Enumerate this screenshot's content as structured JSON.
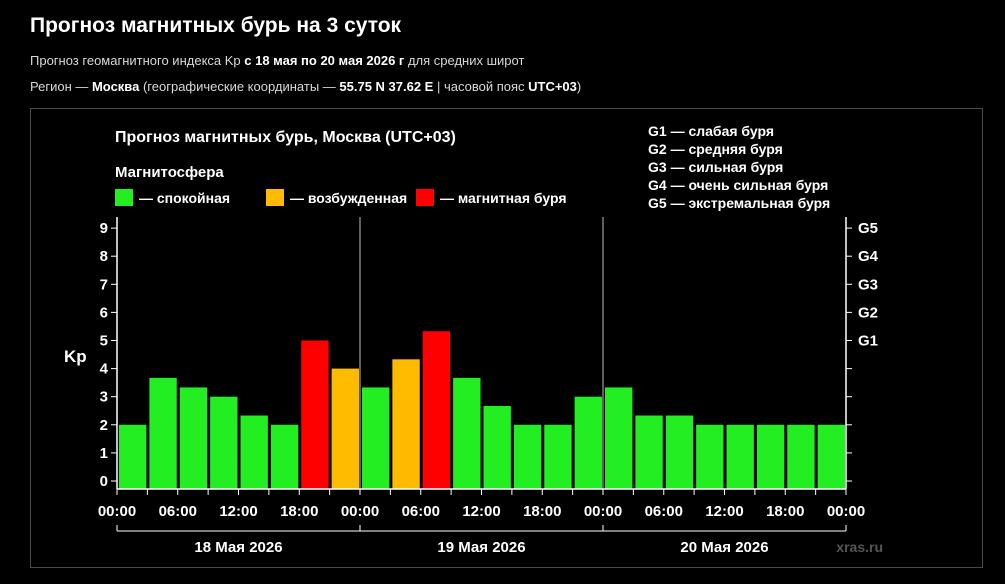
{
  "header": {
    "title": "Прогноз магнитных бурь на 3 суток",
    "line1_prefix": "Прогноз геомагнитного индекса Kp ",
    "line1_bold": "с 18 мая по 20 мая 2026 г",
    "line1_suffix": " для средних широт",
    "line2_prefix": "Регион — ",
    "line2_region": "Москва",
    "line2_mid": " (географические координаты — ",
    "line2_coords": "55.75 N 37.62 E",
    "line2_sep": " | часовой пояс ",
    "line2_tz": "UTC+03",
    "line2_end": ")"
  },
  "chart_data": {
    "type": "bar",
    "title": "Прогноз магнитных бурь, Москва (UTC+03)",
    "legend_title": "Магнитосфера",
    "legend": [
      {
        "label": "— спокойная",
        "color": "#22ee22"
      },
      {
        "label": "— возбужденная",
        "color": "#ffbb00"
      },
      {
        "label": "— магнитная буря",
        "color": "#ff0000"
      }
    ],
    "storm_scale": [
      "G1 — слабая буря",
      "G2 — средняя буря",
      "G3 — сильная буря",
      "G4 — очень сильная буря",
      "G5 — экстремальная буря"
    ],
    "ylabel": "Kp",
    "ylim": [
      0,
      9
    ],
    "yticks": [
      "0",
      "1",
      "2",
      "3",
      "4",
      "5",
      "6",
      "7",
      "8",
      "9"
    ],
    "right_ticks": [
      {
        "label": "G1",
        "value": 5
      },
      {
        "label": "G2",
        "value": 6
      },
      {
        "label": "G3",
        "value": 7
      },
      {
        "label": "G4",
        "value": 8
      },
      {
        "label": "G5",
        "value": 9
      }
    ],
    "xtick_labels": [
      "00:00",
      "06:00",
      "12:00",
      "18:00",
      "00:00",
      "06:00",
      "12:00",
      "18:00",
      "00:00",
      "06:00",
      "12:00",
      "18:00",
      "00:00"
    ],
    "days": [
      "18 Мая 2026",
      "19 Мая 2026",
      "20 Мая 2026"
    ],
    "values": [
      2.0,
      3.67,
      3.33,
      3.0,
      2.33,
      2.0,
      5.0,
      4.0,
      3.33,
      4.33,
      5.33,
      3.67,
      2.67,
      2.0,
      2.0,
      3.0,
      3.33,
      2.33,
      2.33,
      2.0,
      2.0,
      2.0,
      2.0,
      2.0
    ],
    "levels": [
      "calm",
      "calm",
      "calm",
      "calm",
      "calm",
      "calm",
      "storm",
      "active",
      "calm",
      "active",
      "storm",
      "calm",
      "calm",
      "calm",
      "calm",
      "calm",
      "calm",
      "calm",
      "calm",
      "calm",
      "calm",
      "calm",
      "calm",
      "calm"
    ],
    "colors": {
      "calm": "#22ee22",
      "active": "#ffbb00",
      "storm": "#ff0000"
    },
    "watermark": "xras.ru"
  }
}
